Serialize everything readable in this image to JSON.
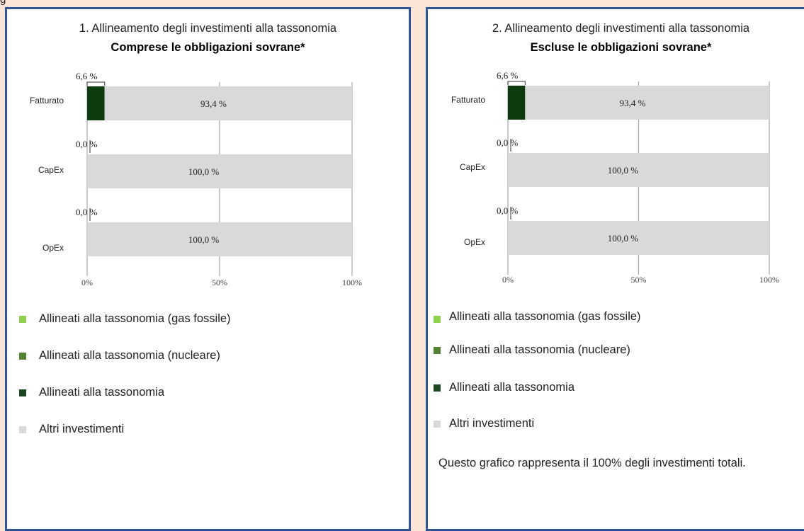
{
  "header_fragment": "g",
  "legend": [
    {
      "label": "Allineati alla tassonomia (gas fossile)",
      "color": "#8fd14f"
    },
    {
      "label": "Allineati alla tassonomia (nucleare)",
      "color": "#548235"
    },
    {
      "label": "Allineati alla tassonomia",
      "color": "#1e4620"
    },
    {
      "label": "Altri investimenti",
      "color": "#d9d9d9"
    }
  ],
  "note": "Questo grafico rappresenta il 100% degli investimenti totali.",
  "chart_data": [
    {
      "type": "bar",
      "orientation": "horizontal",
      "stacked": true,
      "title": "1. Allineamento degli investimenti alla tassonomia",
      "subtitle": "Comprese le obbligazioni sovrane*",
      "categories": [
        "Fatturato",
        "CapEx",
        "OpEx"
      ],
      "series": [
        {
          "name": "Allineati alla tassonomia",
          "values": [
            6.6,
            0.0,
            0.0
          ],
          "labels": [
            "6,6 %",
            "0,0 %",
            "0,0 %"
          ],
          "color": "#0d3b0d"
        },
        {
          "name": "Altri investimenti",
          "values": [
            93.4,
            100.0,
            100.0
          ],
          "labels": [
            "93,4 %",
            "100,0 %",
            "100,0 %"
          ],
          "color": "#d9d9d9"
        }
      ],
      "xlim": [
        0,
        100
      ],
      "xticks": [
        "0%",
        "50%",
        "100%"
      ],
      "grid": true
    },
    {
      "type": "bar",
      "orientation": "horizontal",
      "stacked": true,
      "title": "2. Allineamento degli investimenti alla tassonomia",
      "subtitle": "Escluse le obbligazioni sovrane*",
      "categories": [
        "Fatturato",
        "CapEx",
        "OpEx"
      ],
      "series": [
        {
          "name": "Allineati alla tassonomia",
          "values": [
            6.6,
            0.0,
            0.0
          ],
          "labels": [
            "6,6 %",
            "0,0 %",
            "0,0 %"
          ],
          "color": "#0d3b0d"
        },
        {
          "name": "Altri investimenti",
          "values": [
            93.4,
            100.0,
            100.0
          ],
          "labels": [
            "93,4 %",
            "100,0 %",
            "100,0 %"
          ],
          "color": "#d9d9d9"
        }
      ],
      "xlim": [
        0,
        100
      ],
      "xticks": [
        "0%",
        "50%",
        "100%"
      ],
      "grid": true
    }
  ]
}
